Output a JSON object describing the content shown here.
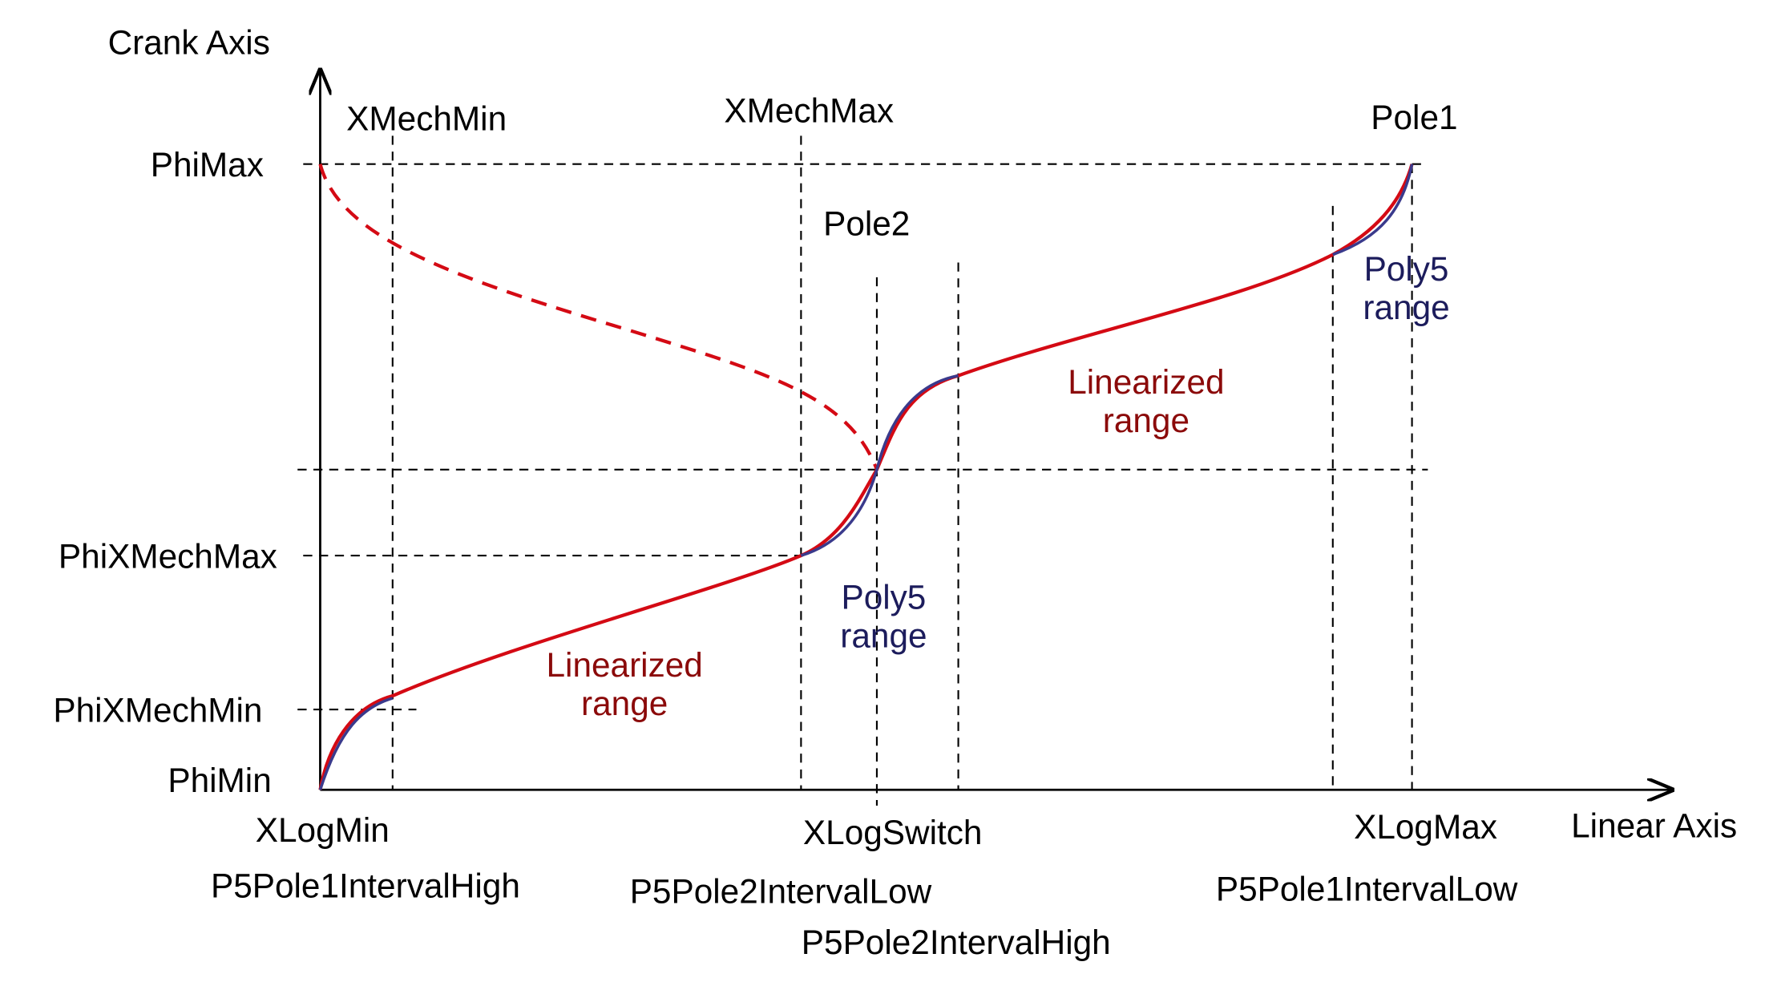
{
  "axes": {
    "y_label": "Crank Axis",
    "x_label": "Linear Axis"
  },
  "y_labels": [
    "PhiMax",
    "PhiXMechMax",
    "PhiXMechMin",
    "PhiMin"
  ],
  "top_labels": [
    "XMechMin",
    "XMechMax",
    "Pole2",
    "Pole1"
  ],
  "bottom_labels": [
    "XLogMin",
    "P5Pole1IntervalHigh",
    "XLogSwitch",
    "P5Pole2IntervalLow",
    "P5Pole2IntervalHigh",
    "XLogMax",
    "P5Pole1IntervalLow"
  ],
  "regions": [
    {
      "line1": "Linearized",
      "line2": "range"
    },
    {
      "line1": "Poly5",
      "line2": "range"
    },
    {
      "line1": "Linearized",
      "line2": "range"
    },
    {
      "line1": "Poly5",
      "line2": "range"
    }
  ]
}
